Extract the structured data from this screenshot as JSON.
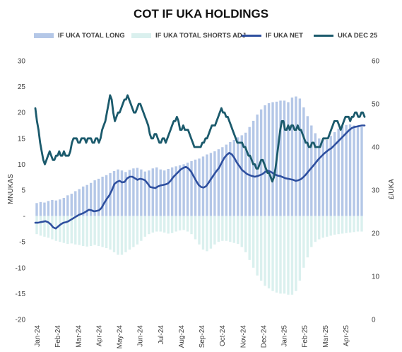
{
  "chart_data": {
    "type": "bar+line",
    "title": "COT IF UKA HOLDINGS",
    "legend_position": "top",
    "grid": false,
    "left_axis": {
      "label": "MNUKAS",
      "range": [
        -20,
        30
      ],
      "ticks": [
        "-20",
        "-15",
        "-10",
        "-5",
        "-",
        "5",
        "10",
        "15",
        "20",
        "25",
        "30"
      ]
    },
    "right_axis": {
      "label": "£/UKA",
      "range": [
        0,
        60
      ],
      "ticks": [
        "0",
        "10",
        "20",
        "30",
        "40",
        "50",
        "60"
      ]
    },
    "x_ticks": [
      "Jan-24",
      "Feb-24",
      "Mar-24",
      "Apr-24",
      "May-24",
      "Jun-24",
      "Jul-24",
      "Aug-24",
      "Sep-24",
      "Oct-24",
      "Nov-24",
      "Dec-24",
      "Jan-25",
      "Feb-25",
      "Mar-25",
      "Apr-25"
    ],
    "series": [
      {
        "name": "IF UKA TOTAL LONG",
        "type": "bar",
        "axis": "left",
        "color": "#b4c7e7",
        "values": [
          2.5,
          2.7,
          2.6,
          2.9,
          3.1,
          3.0,
          3.2,
          3.5,
          4.0,
          4.3,
          4.8,
          5.2,
          5.7,
          6.0,
          6.4,
          6.9,
          7.2,
          7.6,
          7.9,
          8.3,
          8.7,
          9.0,
          8.8,
          8.5,
          8.9,
          9.2,
          9.3,
          9.0,
          8.6,
          8.8,
          9.2,
          9.4,
          9.0,
          8.8,
          9.1,
          9.4,
          9.6,
          9.8,
          10.0,
          10.3,
          10.6,
          10.9,
          11.1,
          11.5,
          11.9,
          12.2,
          12.5,
          12.9,
          13.3,
          13.8,
          14.3,
          14.7,
          15.2,
          15.6,
          16.1,
          17.2,
          18.4,
          19.6,
          20.6,
          21.4,
          21.8,
          22.0,
          22.1,
          22.3,
          22.3,
          22.0,
          22.9,
          23.1,
          22.7,
          21.0,
          19.3,
          17.5,
          16.0,
          15.0,
          14.7,
          14.7,
          15.5,
          16.2,
          16.9,
          17.3,
          17.6,
          17.7,
          17.5,
          17.3,
          17.2
        ]
      },
      {
        "name": "IF UKA TOTAL SHORTS ADJ",
        "type": "bar",
        "axis": "left",
        "color": "#daf0ee",
        "values": [
          -3.5,
          -3.8,
          -4.0,
          -4.2,
          -4.5,
          -4.8,
          -5.0,
          -5.2,
          -5.4,
          -5.3,
          -5.5,
          -5.6,
          -5.8,
          -5.9,
          -5.8,
          -5.6,
          -5.8,
          -6.0,
          -6.2,
          -6.5,
          -7.0,
          -7.5,
          -7.5,
          -7.0,
          -6.5,
          -6.0,
          -5.5,
          -4.8,
          -4.0,
          -3.5,
          -3.2,
          -3.0,
          -3.0,
          -3.2,
          -3.4,
          -3.3,
          -3.0,
          -2.8,
          -2.7,
          -3.0,
          -3.5,
          -4.5,
          -5.5,
          -6.5,
          -6.8,
          -6.3,
          -5.5,
          -5.0,
          -4.8,
          -4.8,
          -5.0,
          -5.2,
          -5.4,
          -6.0,
          -7.0,
          -8.5,
          -10.0,
          -11.5,
          -12.5,
          -13.5,
          -14.0,
          -14.5,
          -14.8,
          -15.0,
          -15.0,
          -15.2,
          -15.2,
          -14.5,
          -12.5,
          -10.0,
          -8.0,
          -6.0,
          -5.0,
          -4.5,
          -4.2,
          -4.0,
          -3.8,
          -3.6,
          -3.5,
          -3.4,
          -3.3,
          -3.2,
          -3.1,
          -3.0,
          -3.0
        ]
      },
      {
        "name": "IF UKA NET",
        "type": "line",
        "axis": "left",
        "color": "#2e4f9f",
        "values": [
          -1.3,
          -1.3,
          -1.2,
          -1.1,
          -1.0,
          -1.2,
          -1.6,
          -2.2,
          -2.4,
          -2.0,
          -1.6,
          -1.3,
          -1.2,
          -1.0,
          -0.7,
          -0.4,
          -0.1,
          0.2,
          0.4,
          0.6,
          0.9,
          1.2,
          1.1,
          0.9,
          1.0,
          1.1,
          1.6,
          2.5,
          3.3,
          4.0,
          5.0,
          6.2,
          6.6,
          6.8,
          6.5,
          6.6,
          7.3,
          7.6,
          7.6,
          7.3,
          7.0,
          7.2,
          7.1,
          6.9,
          6.3,
          5.6,
          5.5,
          5.4,
          5.7,
          5.9,
          6.0,
          6.1,
          6.3,
          6.8,
          7.5,
          8.0,
          8.5,
          9.0,
          9.3,
          9.5,
          9.2,
          8.6,
          7.7,
          6.8,
          6.0,
          5.6,
          5.5,
          5.8,
          6.5,
          7.3,
          8.0,
          8.7,
          9.3,
          10.3,
          11.2,
          11.8,
          12.2,
          11.9,
          11.2,
          10.3,
          9.6,
          8.9,
          8.5,
          8.1,
          7.9,
          7.7,
          7.6,
          7.7,
          7.9,
          8.1,
          8.5,
          8.8,
          8.6,
          8.3,
          8.0,
          7.8,
          7.7,
          7.5,
          7.3,
          7.2,
          7.1,
          7.0,
          6.8,
          6.9,
          7.1,
          7.5,
          8.0,
          8.6,
          9.2,
          9.8,
          10.4,
          11.0,
          11.5,
          12.0,
          12.4,
          12.8,
          13.1,
          13.6,
          14.1,
          14.6,
          15.1,
          15.6,
          16.1,
          16.6,
          17.0,
          17.2,
          17.3,
          17.4,
          17.5,
          17.5
        ]
      },
      {
        "name": "UKA DEC 25",
        "type": "line",
        "axis": "right",
        "color": "#1b5a6c",
        "values": [
          49,
          46,
          44,
          41,
          39,
          37,
          36,
          37,
          38,
          39,
          38,
          37,
          37,
          38,
          38,
          39,
          38,
          38,
          39,
          38,
          38,
          38,
          39,
          41,
          42,
          42,
          42,
          41,
          41,
          42,
          42,
          42,
          41,
          42,
          42,
          42,
          41,
          41,
          42,
          42,
          41,
          42,
          44,
          45,
          46,
          48,
          50,
          52,
          51,
          48,
          46,
          47,
          48,
          48,
          49,
          50,
          51,
          51,
          52,
          51,
          50,
          49,
          48,
          48,
          49,
          50,
          50,
          49,
          48,
          47,
          46,
          45,
          43,
          42,
          42,
          43,
          43,
          42,
          41,
          41,
          42,
          42,
          41,
          42,
          43,
          44,
          45,
          46,
          46,
          47,
          46,
          44,
          44,
          45,
          44,
          44,
          44,
          43,
          42,
          41,
          40,
          40,
          40,
          40,
          40,
          41,
          41,
          42,
          42,
          43,
          44,
          45,
          45,
          45,
          46,
          47,
          48,
          49,
          48,
          48,
          47,
          47,
          46,
          45,
          44,
          43,
          42,
          41,
          41,
          41,
          41,
          40,
          40,
          39,
          38,
          38,
          37,
          36,
          36,
          35,
          35,
          36,
          37,
          37,
          36,
          35,
          34,
          34,
          33,
          32,
          33,
          35,
          38,
          41,
          44,
          46,
          46,
          44,
          44,
          45,
          44,
          45,
          45,
          44,
          44,
          45,
          44,
          44,
          43,
          42,
          41,
          41,
          40,
          40,
          41,
          41,
          40,
          40,
          40,
          40,
          41,
          42,
          42,
          42,
          42,
          43,
          44,
          45,
          46,
          46,
          46,
          45,
          44,
          45,
          46,
          47,
          47,
          47,
          46,
          47,
          47,
          48,
          48,
          47,
          47,
          48,
          48,
          47
        ]
      }
    ]
  }
}
